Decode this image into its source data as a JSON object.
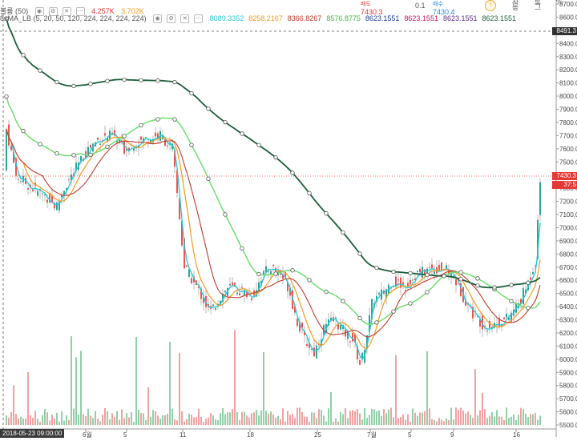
{
  "header": {
    "volume_label": "볼륨 (50)",
    "volume_val1": "4.257K",
    "volume_val2": "3.702K",
    "ma_label": "8xMA_LB (5, 20, 50, 120, 224, 224, 224, 224)",
    "ma_values": [
      {
        "value": "8089.3352",
        "color": "#29c7d6"
      },
      {
        "value": "8258.2167",
        "color": "#f29a1e"
      },
      {
        "value": "8366.8267",
        "color": "#c0392b"
      },
      {
        "value": "8576.8775",
        "color": "#3db83d"
      },
      {
        "value": "8623.1551",
        "color": "#1f3a93"
      },
      {
        "value": "8623.1551",
        "color": "#c2185b"
      },
      {
        "value": "8623.1551",
        "color": "#5a2d82"
      },
      {
        "value": "8623.1551",
        "color": "#1b5e3a"
      }
    ]
  },
  "order_panel": {
    "sell_label": "매도",
    "sell_price": "7430.3",
    "spread": "0.1",
    "buy_label": "매수",
    "buy_price": "7430.4",
    "info_icon": "!"
  },
  "price_axis": {
    "ticks": [
      "8700.0000",
      "8600.0000",
      "8500.0000",
      "8400.0000",
      "8300.0000",
      "8200.0000",
      "8100.0000",
      "8000.0000",
      "7900.0000",
      "7800.0000",
      "7700.0000",
      "7600.0000",
      "7500.0000",
      "7400.0000",
      "7300.0000",
      "7200.0000",
      "7100.0000",
      "7000.0000",
      "6900.0000",
      "6800.0000",
      "6700.0000",
      "6600.0000",
      "6500.0000",
      "6400.0000",
      "6300.0000",
      "6200.0000",
      "6100.0000",
      "6000.0000",
      "5900.0000",
      "5800.0000",
      "5700.0000",
      "5600.0000",
      "5500.0000"
    ],
    "crosshair_price": "8491.3",
    "last_price": "7430.3",
    "last_sub": "37:5",
    "crosshair_color": "#333333",
    "last_color": "#e53935"
  },
  "time_axis": {
    "ticks": [
      "6월",
      "5",
      "11",
      "18",
      "25",
      "7월",
      "5",
      "9",
      "16"
    ],
    "crosshair_date": "2018-05-23 09:00:00"
  },
  "colors": {
    "up": "#26a69a",
    "down": "#ef5350",
    "vol_up": "#8fd0a6",
    "vol_down": "#f2a0a0"
  }
}
